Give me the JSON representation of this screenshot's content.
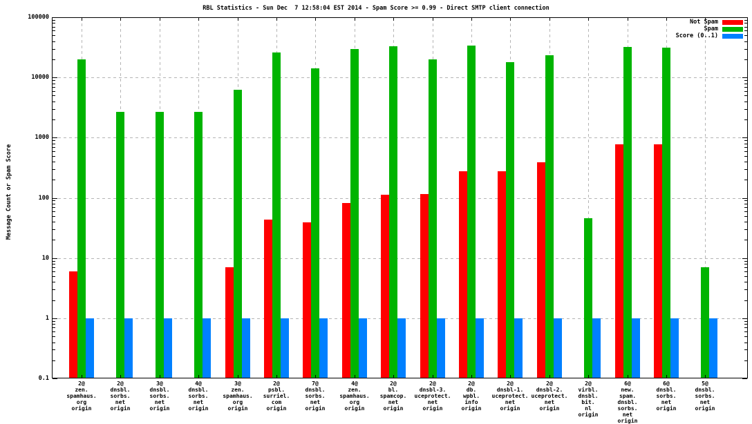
{
  "title": "RBL Statistics - Sun Dec  7 12:58:04 EST 2014 - Spam Score >= 0.99 - Direct SMTP client connection",
  "ylabel": "Message Count or Spam Score",
  "legend": {
    "entries": [
      {
        "label": "Not Spam",
        "color": "#ff0000"
      },
      {
        "label": "Spam",
        "color": "#00b400"
      },
      {
        "label": "Score (0..1)",
        "color": "#0080ff"
      }
    ]
  },
  "chart_data": {
    "type": "bar",
    "title": "RBL Statistics - Sun Dec  7 12:58:04 EST 2014 - Spam Score >= 0.99 - Direct SMTP client connection",
    "xlabel": "",
    "ylabel": "Message Count or Spam Score",
    "y_scale": "log10",
    "ylim": [
      0.1,
      100000
    ],
    "y_ticks": [
      "100000",
      "10000",
      "1000",
      "100",
      "10",
      "1",
      "0.1"
    ],
    "grid": true,
    "legend_position": "top-right-inside",
    "categories": [
      [
        "2@",
        "zen.",
        "spamhaus.",
        "org",
        "origin"
      ],
      [
        "2@",
        "dnsbl.",
        "sorbs.",
        "net",
        "origin"
      ],
      [
        "3@",
        "dnsbl.",
        "sorbs.",
        "net",
        "origin"
      ],
      [
        "4@",
        "dnsbl.",
        "sorbs.",
        "net",
        "origin"
      ],
      [
        "3@",
        "zen.",
        "spamhaus.",
        "org",
        "origin"
      ],
      [
        "2@",
        "psbl.",
        "surriel.",
        "com",
        "origin"
      ],
      [
        "7@",
        "dnsbl.",
        "sorbs.",
        "net",
        "origin"
      ],
      [
        "4@",
        "zen.",
        "spamhaus.",
        "org",
        "origin"
      ],
      [
        "2@",
        "bl.",
        "spamcop.",
        "net",
        "origin"
      ],
      [
        "2@",
        "dnsbl-3.",
        "uceprotect.",
        "net",
        "origin"
      ],
      [
        "2@",
        "db.",
        "wpbl.",
        "info",
        "origin"
      ],
      [
        "2@",
        "dnsbl-1.",
        "uceprotect.",
        "net",
        "origin"
      ],
      [
        "2@",
        "dnsbl-2.",
        "uceprotect.",
        "net",
        "origin"
      ],
      [
        "2@",
        "virbl.",
        "dnsbl.",
        "bit.",
        "nl",
        "origin"
      ],
      [
        "6@",
        "new.",
        "spam.",
        "dnsbl.",
        "sorbs.",
        "net",
        "origin"
      ],
      [
        "6@",
        "dnsbl.",
        "sorbs.",
        "net",
        "origin"
      ],
      [
        "5@",
        "dnsbl.",
        "sorbs.",
        "net",
        "origin"
      ]
    ],
    "series": [
      {
        "name": "Not Spam",
        "color": "#ff0000",
        "values": [
          6,
          0,
          0,
          0,
          7,
          43,
          39,
          83,
          113,
          116,
          280,
          280,
          390,
          0,
          770,
          780,
          0
        ]
      },
      {
        "name": "Spam",
        "color": "#00b400",
        "values": [
          20000,
          2700,
          2700,
          2700,
          6300,
          26000,
          14000,
          30000,
          33000,
          20000,
          34000,
          18000,
          23500,
          46,
          32500,
          31500,
          7
        ]
      },
      {
        "name": "Score (0..1)",
        "color": "#0080ff",
        "values": [
          1,
          1,
          1,
          1,
          1,
          1,
          1,
          1,
          1,
          1,
          1,
          1,
          1,
          1,
          1,
          1,
          1
        ]
      }
    ]
  }
}
